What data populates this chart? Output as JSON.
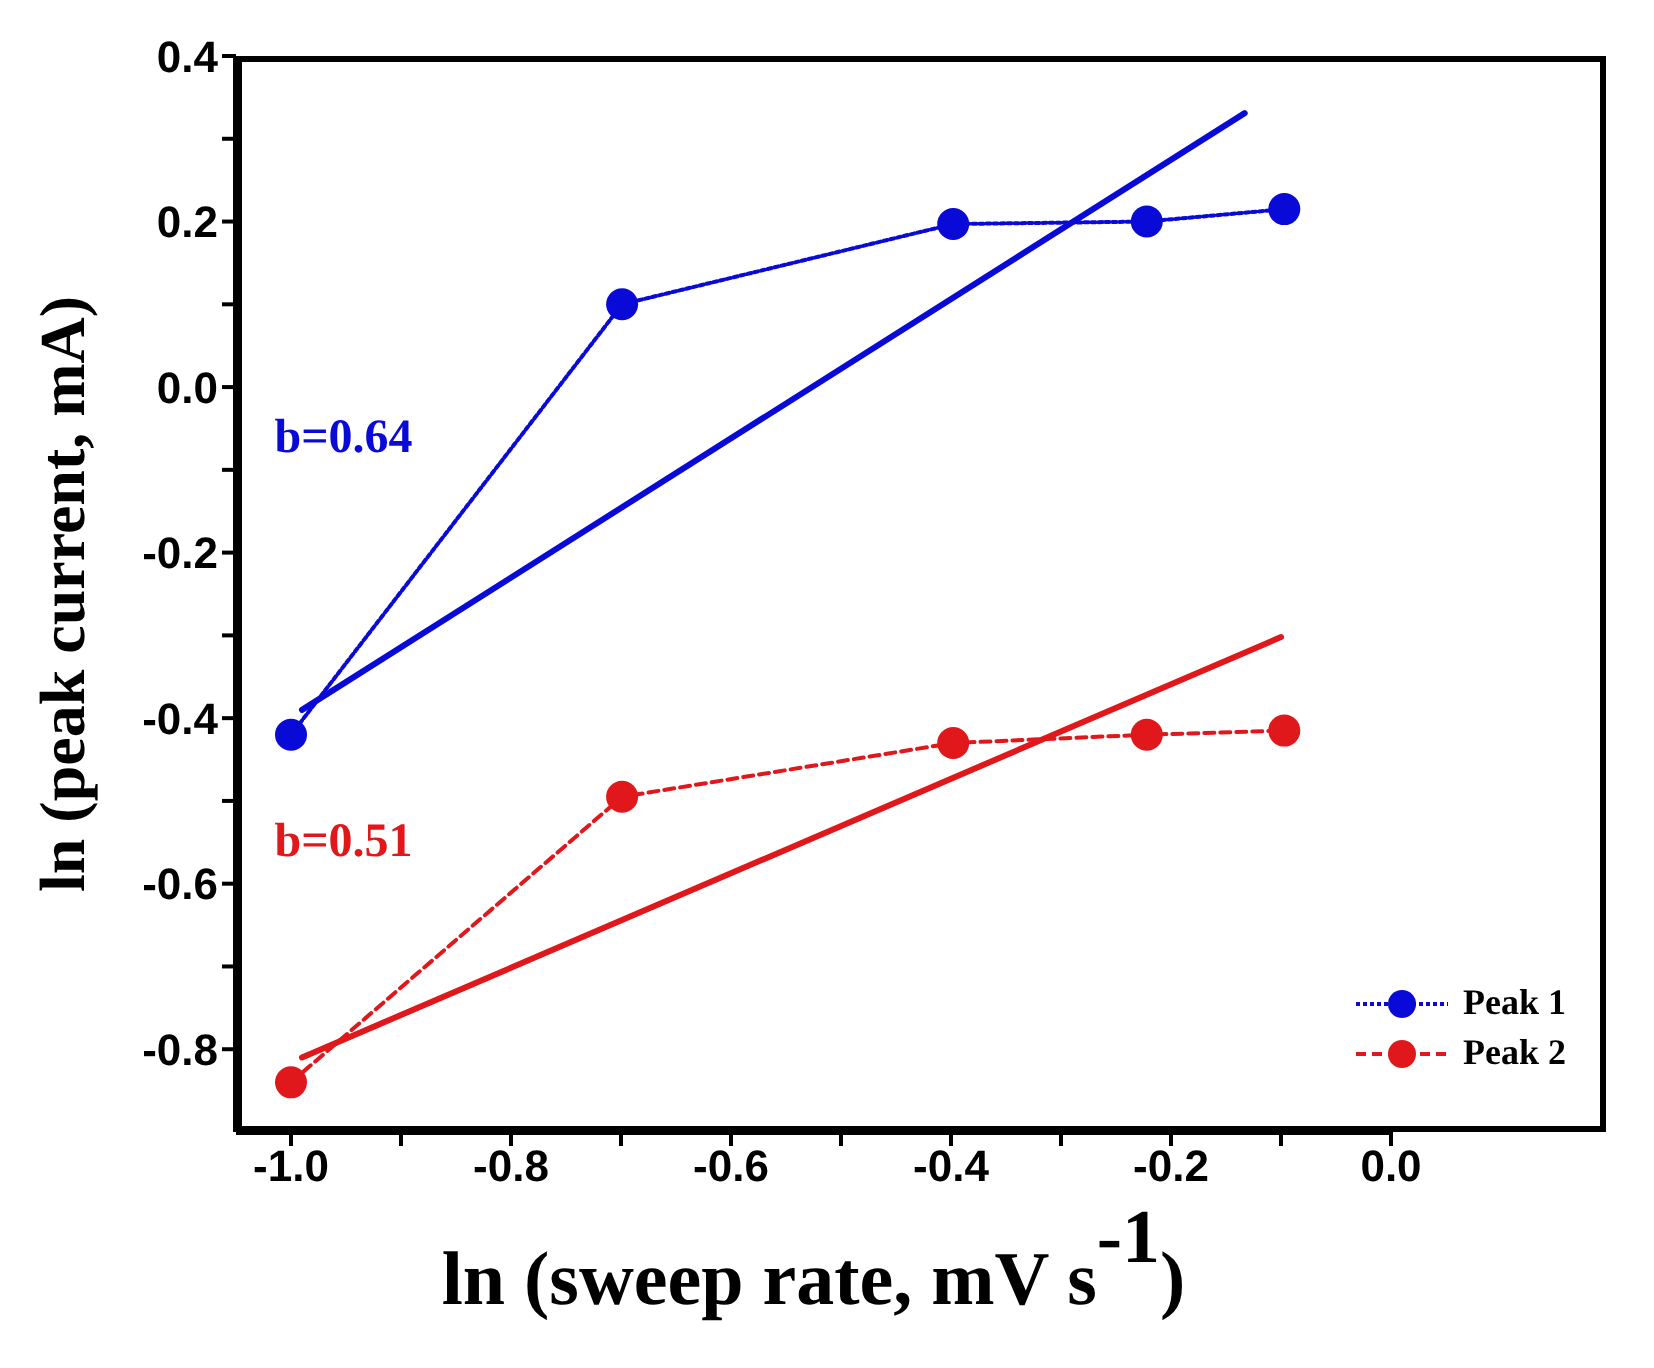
{
  "chart_data": {
    "type": "line",
    "xlabel": "ln (sweep rate, mV s$^{-1}$)",
    "ylabel": "ln (peak current, mA)",
    "xlim": [
      -1.05,
      0
    ],
    "ylim": [
      -0.9,
      0.4
    ],
    "xticks": [
      {
        "value": -1,
        "label": "-1.0"
      },
      {
        "value": -0.9,
        "label": null
      },
      {
        "value": -0.8,
        "label": "-0.8"
      },
      {
        "value": -0.7,
        "label": null
      },
      {
        "value": -0.6,
        "label": "-0.6"
      },
      {
        "value": -0.5,
        "label": null
      },
      {
        "value": -0.4,
        "label": "-0.4"
      },
      {
        "value": -0.3,
        "label": null
      },
      {
        "value": -0.2,
        "label": "-0.2"
      },
      {
        "value": -0.1,
        "label": null
      },
      {
        "value": 0,
        "label": "0.0"
      }
    ],
    "yticks": [
      {
        "value": -0.8,
        "label": "-0.8"
      },
      {
        "value": -0.7,
        "label": null
      },
      {
        "value": -0.6,
        "label": "-0.6"
      },
      {
        "value": -0.5,
        "label": null
      },
      {
        "value": -0.4,
        "label": "-0.4"
      },
      {
        "value": -0.3,
        "label": null
      },
      {
        "value": -0.2,
        "label": "-0.2"
      },
      {
        "value": -0.1,
        "label": null
      },
      {
        "value": 0,
        "label": "0.0"
      },
      {
        "value": 0.1,
        "label": null
      },
      {
        "value": 0.2,
        "label": "0.2"
      },
      {
        "value": 0.3,
        "label": null
      },
      {
        "value": 0.4,
        "label": "0.4"
      }
    ],
    "grid": false,
    "legend": "bottom right",
    "series": [
      {
        "name": "Peak 1",
        "color": "#0a0ad8",
        "x": [
          -1,
          -0.699,
          -0.398,
          -0.222,
          -0.097
        ],
        "values": [
          -0.42,
          0.1,
          0.197,
          0.2,
          0.215
        ],
        "marker": "circle",
        "line_style": "dotted"
      },
      {
        "name": "Peak 2",
        "color": "#e0181c",
        "x": [
          -1,
          -0.699,
          -0.398,
          -0.222,
          -0.097
        ],
        "values": [
          -0.84,
          -0.495,
          -0.43,
          -0.42,
          -0.415
        ],
        "marker": "circle",
        "line_style": "dashed"
      },
      {
        "color": "#0a0ad8",
        "x": [
          -0.99,
          -0.133
        ],
        "values": [
          -0.39,
          0.331
        ],
        "marker": "none",
        "line_style": "solid"
      },
      {
        "color": "#e0181c",
        "x": [
          -0.99,
          -0.1
        ],
        "values": [
          -0.81,
          -0.302
        ],
        "marker": "none",
        "line_style": "solid"
      }
    ],
    "annotations": [
      "b=0.64",
      "b=0.51"
    ]
  }
}
